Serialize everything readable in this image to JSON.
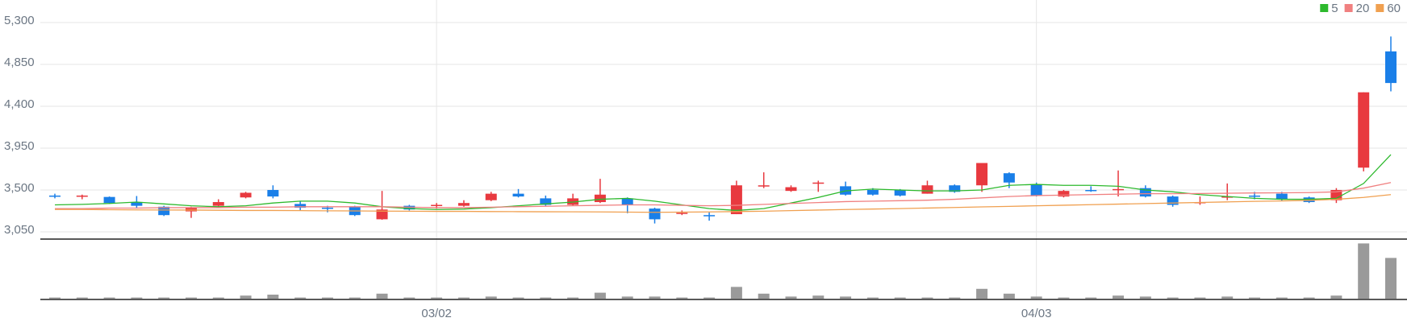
{
  "chart_data": {
    "type": "candlestick",
    "categories": [
      null,
      null,
      null,
      null,
      null,
      null,
      null,
      null,
      null,
      null,
      null,
      null,
      null,
      null,
      "03/02",
      null,
      null,
      null,
      null,
      null,
      null,
      null,
      null,
      null,
      null,
      null,
      null,
      null,
      null,
      null,
      null,
      null,
      null,
      null,
      null,
      null,
      "04/03",
      null,
      null,
      null,
      null,
      null,
      null,
      null,
      null,
      null,
      null,
      null,
      null,
      null
    ],
    "open": [
      3440,
      3430,
      3425,
      3370,
      3320,
      3270,
      3330,
      3420,
      3500,
      3350,
      3310,
      3320,
      3185,
      3330,
      3330,
      3330,
      3390,
      3460,
      3410,
      3340,
      3370,
      3410,
      3300,
      3245,
      3230,
      3240,
      3540,
      3490,
      3570,
      3540,
      3500,
      3500,
      3460,
      3550,
      3550,
      3680,
      3560,
      3430,
      3500,
      3500,
      3520,
      3430,
      3360,
      3420,
      3440,
      3460,
      3420,
      3390,
      3740,
      4990
    ],
    "high": [
      3460,
      3450,
      3430,
      3435,
      3330,
      3320,
      3400,
      3480,
      3550,
      3380,
      3330,
      3330,
      3490,
      3340,
      3360,
      3390,
      3480,
      3510,
      3440,
      3460,
      3620,
      3420,
      3310,
      3280,
      3260,
      3600,
      3690,
      3550,
      3600,
      3590,
      3520,
      3510,
      3600,
      3560,
      3790,
      3690,
      3580,
      3500,
      3540,
      3710,
      3550,
      3440,
      3430,
      3570,
      3480,
      3480,
      3430,
      3520,
      4550,
      5150
    ],
    "low": [
      3410,
      3400,
      3350,
      3300,
      3220,
      3200,
      3320,
      3410,
      3410,
      3280,
      3260,
      3220,
      3180,
      3280,
      3300,
      3320,
      3380,
      3420,
      3330,
      3330,
      3360,
      3250,
      3140,
      3230,
      3170,
      3240,
      3520,
      3480,
      3480,
      3440,
      3440,
      3430,
      3460,
      3470,
      3480,
      3520,
      3430,
      3420,
      3480,
      3430,
      3420,
      3320,
      3340,
      3390,
      3400,
      3380,
      3360,
      3360,
      3700,
      4560
    ],
    "close": [
      3430,
      3440,
      3360,
      3330,
      3230,
      3310,
      3370,
      3470,
      3430,
      3310,
      3300,
      3230,
      3290,
      3290,
      3340,
      3360,
      3460,
      3430,
      3340,
      3410,
      3450,
      3340,
      3185,
      3255,
      3220,
      3550,
      3550,
      3530,
      3580,
      3450,
      3450,
      3440,
      3550,
      3480,
      3790,
      3580,
      3440,
      3490,
      3490,
      3510,
      3430,
      3340,
      3370,
      3430,
      3430,
      3400,
      3370,
      3500,
      4550,
      4650
    ],
    "up_color": "#e8393f",
    "down_color": "#1a7fe8",
    "ylim": [
      3050,
      5300
    ],
    "yticks": [
      {
        "value": 3050,
        "label": "3,050"
      },
      {
        "value": 3500,
        "label": "3,500"
      },
      {
        "value": 3950,
        "label": "3,950"
      },
      {
        "value": 4400,
        "label": "4,400"
      },
      {
        "value": 4850,
        "label": "4,850"
      },
      {
        "value": 5300,
        "label": "5,300"
      }
    ],
    "grid": true,
    "series": [
      {
        "name": "5",
        "color": "#2db92d",
        "values": [
          3340,
          3345,
          3355,
          3370,
          3350,
          3330,
          3320,
          3330,
          3360,
          3380,
          3380,
          3360,
          3320,
          3300,
          3290,
          3295,
          3310,
          3330,
          3350,
          3370,
          3400,
          3410,
          3380,
          3340,
          3300,
          3280,
          3300,
          3360,
          3420,
          3490,
          3510,
          3500,
          3490,
          3490,
          3500,
          3550,
          3560,
          3550,
          3550,
          3540,
          3500,
          3480,
          3450,
          3430,
          3410,
          3400,
          3400,
          3410,
          3570,
          3880
        ]
      },
      {
        "name": "20",
        "color": "#f08080",
        "values": [
          3300,
          3300,
          3305,
          3305,
          3310,
          3310,
          3310,
          3315,
          3315,
          3320,
          3320,
          3320,
          3320,
          3315,
          3310,
          3310,
          3315,
          3320,
          3325,
          3330,
          3335,
          3340,
          3340,
          3335,
          3330,
          3335,
          3345,
          3355,
          3365,
          3375,
          3380,
          3385,
          3390,
          3400,
          3415,
          3430,
          3440,
          3445,
          3450,
          3455,
          3460,
          3460,
          3462,
          3465,
          3468,
          3470,
          3472,
          3480,
          3520,
          3580
        ]
      },
      {
        "name": "60",
        "color": "#f0a050",
        "values": [
          3290,
          3290,
          3288,
          3286,
          3285,
          3284,
          3282,
          3280,
          3280,
          3278,
          3276,
          3275,
          3273,
          3272,
          3270,
          3270,
          3268,
          3267,
          3266,
          3265,
          3264,
          3262,
          3260,
          3262,
          3264,
          3268,
          3272,
          3278,
          3284,
          3290,
          3295,
          3300,
          3306,
          3312,
          3318,
          3324,
          3330,
          3336,
          3342,
          3348,
          3354,
          3360,
          3366,
          3372,
          3378,
          3382,
          3388,
          3400,
          3420,
          3450
        ]
      }
    ],
    "volume": {
      "color": "#9a9a9a",
      "ylim": [
        0,
        60
      ],
      "values": [
        2,
        2,
        2,
        2,
        2,
        2,
        2,
        4,
        5,
        2,
        2,
        2,
        6,
        2,
        2,
        2,
        3,
        2,
        2,
        2,
        7,
        3,
        3,
        2,
        2,
        13,
        6,
        3,
        4,
        3,
        2,
        2,
        2,
        2,
        11,
        6,
        3,
        2,
        2,
        4,
        3,
        2,
        2,
        3,
        2,
        2,
        2,
        4,
        58,
        43
      ]
    }
  }
}
